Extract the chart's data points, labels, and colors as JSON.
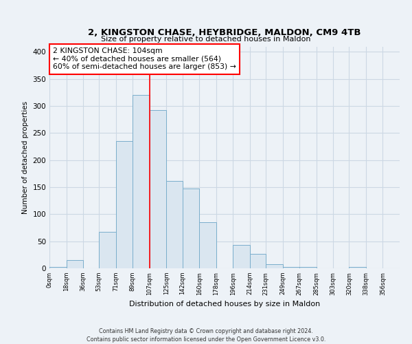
{
  "title": "2, KINGSTON CHASE, HEYBRIDGE, MALDON, CM9 4TB",
  "subtitle": "Size of property relative to detached houses in Maldon",
  "xlabel": "Distribution of detached houses by size in Maldon",
  "ylabel": "Number of detached properties",
  "bar_edges": [
    0,
    18,
    36,
    53,
    71,
    89,
    107,
    125,
    142,
    160,
    178,
    196,
    214,
    231,
    249,
    267,
    285,
    303,
    320,
    338,
    356
  ],
  "bar_heights": [
    2,
    15,
    0,
    68,
    235,
    320,
    293,
    162,
    148,
    85,
    0,
    43,
    27,
    7,
    3,
    3,
    0,
    0,
    2,
    0
  ],
  "bar_color": "#dae6f0",
  "bar_edge_color": "#7aaecc",
  "property_line_x": 107,
  "property_line_color": "red",
  "annotation_line1": "2 KINGSTON CHASE: 104sqm",
  "annotation_line2": "← 40% of detached houses are smaller (564)",
  "annotation_line3": "60% of semi-detached houses are larger (853) →",
  "annotation_box_color": "white",
  "annotation_box_edge": "red",
  "ylim": [
    0,
    410
  ],
  "xlim": [
    0,
    374
  ],
  "yticks": [
    0,
    50,
    100,
    150,
    200,
    250,
    300,
    350,
    400
  ],
  "tick_labels": [
    "0sqm",
    "18sqm",
    "36sqm",
    "53sqm",
    "71sqm",
    "89sqm",
    "107sqm",
    "125sqm",
    "142sqm",
    "160sqm",
    "178sqm",
    "196sqm",
    "214sqm",
    "231sqm",
    "249sqm",
    "267sqm",
    "285sqm",
    "303sqm",
    "320sqm",
    "338sqm",
    "356sqm"
  ],
  "tick_positions": [
    0,
    18,
    36,
    53,
    71,
    89,
    107,
    125,
    142,
    160,
    178,
    196,
    214,
    231,
    249,
    267,
    285,
    303,
    320,
    338,
    356
  ],
  "footer_line1": "Contains HM Land Registry data © Crown copyright and database right 2024.",
  "footer_line2": "Contains public sector information licensed under the Open Government Licence v3.0.",
  "background_color": "#edf2f7",
  "grid_color": "#ccd8e4"
}
